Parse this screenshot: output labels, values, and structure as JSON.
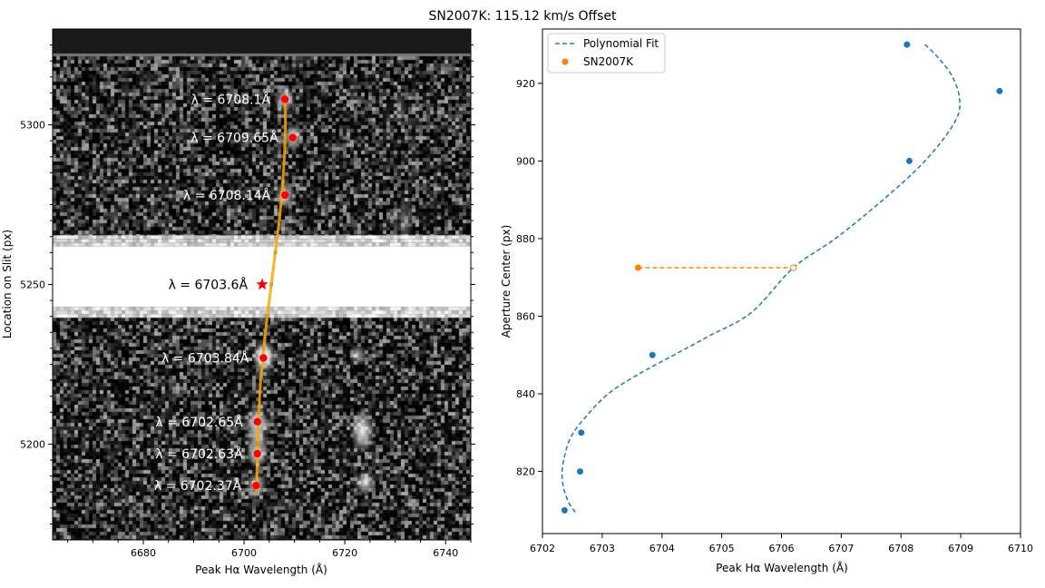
{
  "figure": {
    "title": "SN2007K: 115.12 km/s Offset"
  },
  "colors": {
    "fit": "#1f77b4",
    "sn": "#ff7f0e",
    "marker": "#ff0000",
    "trace": "#ffa500",
    "frame": "#000000",
    "text_on_image": "#ffffff"
  },
  "chart_data": [
    {
      "type": "heatmap",
      "description_role": "2D spectrum image with measured H-alpha peaks",
      "xlabel": "Peak Hα Wavelength (Å)",
      "ylabel": "Location on Slit (px)",
      "xlim": [
        6662,
        6745
      ],
      "ylim": [
        5170,
        5330
      ],
      "xticks": [
        6680,
        6700,
        6720,
        6740
      ],
      "yticks": [
        5200,
        5250,
        5300
      ],
      "xtick_labels": [
        "6680",
        "6700",
        "6720",
        "6740"
      ],
      "ytick_labels": [
        "5200",
        "5250",
        "5300"
      ],
      "points": [
        {
          "x": 6708.1,
          "y": 5308,
          "label": "λ = 6708.1Å"
        },
        {
          "x": 6709.65,
          "y": 5296,
          "label": "λ = 6709.65Å"
        },
        {
          "x": 6708.14,
          "y": 5278,
          "label": "λ = 6708.14Å"
        },
        {
          "x": 6703.84,
          "y": 5227,
          "label": "λ = 6703.84Å"
        },
        {
          "x": 6702.65,
          "y": 5207,
          "label": "λ = 6702.65Å"
        },
        {
          "x": 6702.63,
          "y": 5197,
          "label": "λ = 6702.63Å"
        },
        {
          "x": 6702.37,
          "y": 5187,
          "label": "λ = 6702.37Å"
        }
      ],
      "sn_point": {
        "x": 6703.6,
        "y": 5250,
        "label": "λ = 6703.6Å"
      },
      "trace": [
        [
          6702.4,
          5185
        ],
        [
          6702.6,
          5192
        ],
        [
          6702.7,
          5200
        ],
        [
          6702.9,
          5210
        ],
        [
          6703.3,
          5220
        ],
        [
          6703.9,
          5230
        ],
        [
          6704.6,
          5240
        ],
        [
          6705.4,
          5250
        ],
        [
          6706.2,
          5260
        ],
        [
          6707.0,
          5270
        ],
        [
          6707.6,
          5280
        ],
        [
          6708.0,
          5290
        ],
        [
          6708.2,
          5298
        ],
        [
          6708.2,
          5305
        ],
        [
          6708.1,
          5309
        ]
      ],
      "bright_band": {
        "y_low": 5243,
        "y_high": 5262
      }
    },
    {
      "type": "scatter",
      "xlabel": "Peak Hα Wavelength (Å)",
      "ylabel": "Aperture Center (px)",
      "xlim": [
        6702,
        6710
      ],
      "ylim": [
        804,
        934
      ],
      "xticks": [
        6702,
        6703,
        6704,
        6705,
        6706,
        6707,
        6708,
        6709,
        6710
      ],
      "yticks": [
        820,
        840,
        860,
        880,
        900,
        920
      ],
      "xtick_labels": [
        "6702",
        "6703",
        "6704",
        "6705",
        "6706",
        "6707",
        "6708",
        "6709",
        "6710"
      ],
      "ytick_labels": [
        "820",
        "840",
        "860",
        "880",
        "900",
        "920"
      ],
      "legend_position": "top-left",
      "series": [
        {
          "name": "Polynomial Fit",
          "kind": "dashed-line",
          "points": [
            [
              6702.55,
              809.5
            ],
            [
              6702.44,
              812
            ],
            [
              6702.35,
              816
            ],
            [
              6702.33,
              820
            ],
            [
              6702.37,
              824
            ],
            [
              6702.48,
              829
            ],
            [
              6702.72,
              834
            ],
            [
              6703.1,
              840
            ],
            [
              6703.6,
              845
            ],
            [
              6704.2,
              850
            ],
            [
              6704.8,
              855
            ],
            [
              6705.5,
              861
            ],
            [
              6706.2,
              872.5
            ],
            [
              6706.9,
              880
            ],
            [
              6707.7,
              890
            ],
            [
              6708.4,
              900
            ],
            [
              6708.9,
              910
            ],
            [
              6708.98,
              916
            ],
            [
              6708.85,
              922
            ],
            [
              6708.6,
              927
            ],
            [
              6708.4,
              930
            ]
          ]
        },
        {
          "name": "",
          "kind": "markers",
          "points": [
            [
              6708.1,
              930
            ],
            [
              6709.65,
              918
            ],
            [
              6708.14,
              900
            ],
            [
              6703.84,
              850
            ],
            [
              6702.65,
              830
            ],
            [
              6702.63,
              820
            ],
            [
              6702.37,
              810
            ]
          ]
        },
        {
          "name": "SN2007K",
          "kind": "markers",
          "points": [
            [
              6703.6,
              872.5
            ]
          ]
        },
        {
          "name": "",
          "kind": "offset-line",
          "points": [
            [
              6703.6,
              872.5
            ],
            [
              6706.2,
              872.5
            ]
          ]
        }
      ]
    }
  ]
}
